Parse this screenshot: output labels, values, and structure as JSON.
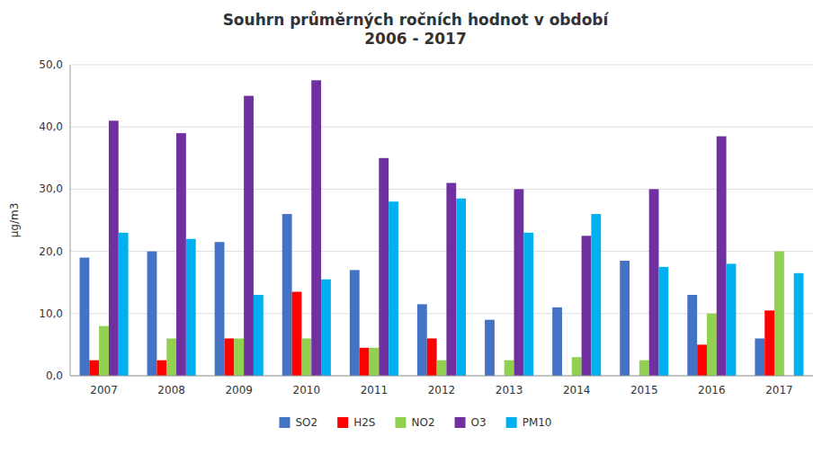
{
  "chart_data": {
    "type": "bar",
    "title": "Souhrn průměrných ročních hodnot v období\n2006 - 2017",
    "y_label": "µg/m3",
    "categories": [
      "2007",
      "2008",
      "2009",
      "2010",
      "2011",
      "2012",
      "2013",
      "2014",
      "2015",
      "2016",
      "2017"
    ],
    "series": [
      {
        "name": "SO2",
        "color": "#4472C4",
        "values": [
          19.0,
          20.0,
          21.5,
          26.0,
          17.0,
          11.5,
          9.0,
          11.0,
          18.5,
          13.0,
          6.0
        ]
      },
      {
        "name": "H2S",
        "color": "#FF0000",
        "values": [
          2.5,
          2.5,
          6.0,
          13.5,
          4.5,
          6.0,
          0.0,
          0.0,
          0.0,
          5.0,
          10.5
        ]
      },
      {
        "name": "NO2",
        "color": "#92D050",
        "values": [
          8.0,
          6.0,
          6.0,
          6.0,
          4.5,
          2.5,
          2.5,
          3.0,
          2.5,
          10.0,
          20.0
        ]
      },
      {
        "name": "O3",
        "color": "#7030A0",
        "values": [
          41.0,
          39.0,
          45.0,
          47.5,
          35.0,
          31.0,
          30.0,
          22.5,
          30.0,
          38.5,
          0.0
        ]
      },
      {
        "name": "PM10",
        "color": "#00B0F0",
        "values": [
          23.0,
          22.0,
          13.0,
          15.5,
          28.0,
          28.5,
          23.0,
          26.0,
          17.5,
          18.0,
          16.5
        ]
      }
    ],
    "ylim": [
      0,
      50
    ],
    "yticks": [
      {
        "value": 0.0,
        "label": "0,0"
      },
      {
        "value": 10.0,
        "label": "10,0"
      },
      {
        "value": 20.0,
        "label": "20,0"
      },
      {
        "value": 30.0,
        "label": "30,0"
      },
      {
        "value": 40.0,
        "label": "40,0"
      },
      {
        "value": 50.0,
        "label": "50,0"
      }
    ],
    "grid": true,
    "legend": "bottom"
  }
}
